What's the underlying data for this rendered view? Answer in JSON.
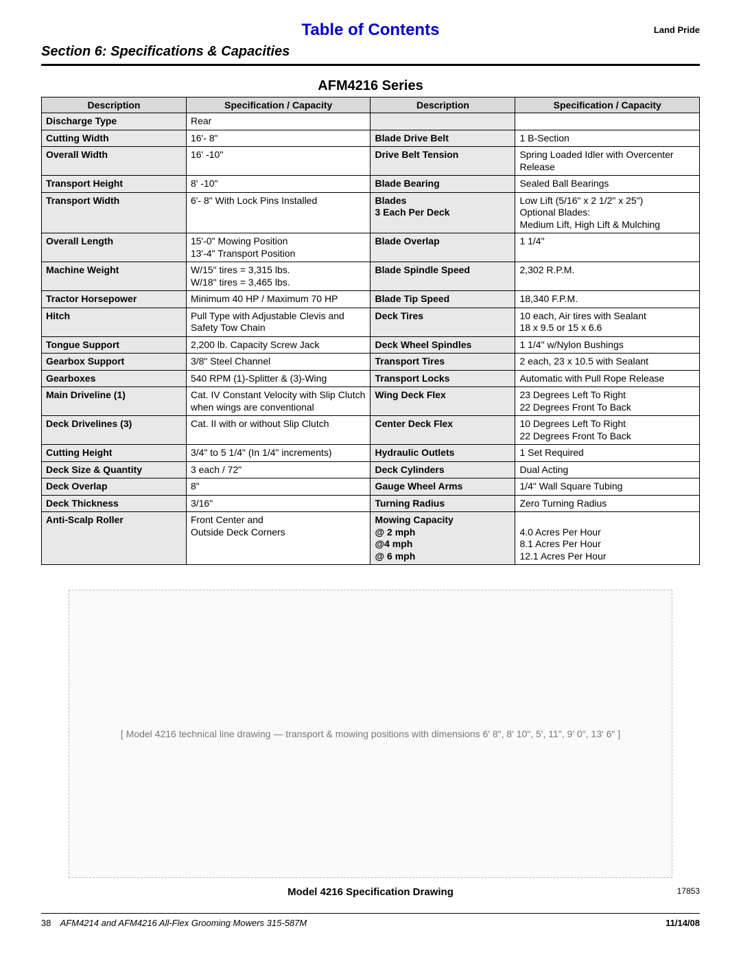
{
  "header": {
    "toc": "Table of Contents",
    "brand": "Land Pride",
    "section": "Section 6: Specifications & Capacities",
    "series": "AFM4216 Series"
  },
  "table": {
    "columns": [
      "Description",
      "Specification / Capacity",
      "Description",
      "Specification / Capacity"
    ],
    "header_bg": "#d9d9d9",
    "desc_bg": "#e8e8e8",
    "border_color": "#000000",
    "rows": [
      {
        "d1": "Discharge Type",
        "v1": "Rear",
        "d2": "",
        "v2": ""
      },
      {
        "d1": "Cutting Width",
        "v1": "16'- 8\"",
        "d2": "Blade Drive Belt",
        "v2": "1 B-Section"
      },
      {
        "d1": "Overall Width",
        "v1": "16' -10\"",
        "d2": "Drive Belt Tension",
        "v2": "Spring Loaded Idler with Overcenter Release"
      },
      {
        "d1": "Transport Height",
        "v1": "8' -10\"",
        "d2": "Blade Bearing",
        "v2": "Sealed Ball Bearings"
      },
      {
        "d1": "Transport Width",
        "v1": "6'- 8\" With Lock Pins Installed",
        "d2": "Blades\n3 Each Per Deck",
        "v2": "Low Lift (5/16\" x 2 1/2\" x 25\")\nOptional Blades:\nMedium Lift, High Lift & Mulching"
      },
      {
        "d1": "Overall Length",
        "v1": "15'-0\" Mowing Position\n13'-4\" Transport Position",
        "d2": "Blade Overlap",
        "v2": "1 1/4\""
      },
      {
        "d1": "Machine Weight",
        "v1": "W/15\" tires = 3,315 lbs.\nW/18\" tires = 3,465 lbs.",
        "d2": "Blade Spindle Speed",
        "v2": "2,302 R.P.M."
      },
      {
        "d1": "Tractor Horsepower",
        "v1": "Minimum 40 HP / Maximum 70 HP",
        "d2": "Blade Tip Speed",
        "v2": "18,340 F.P.M."
      },
      {
        "d1": "Hitch",
        "v1": "Pull Type with Adjustable Clevis and Safety Tow Chain",
        "d2": "Deck Tires",
        "v2": "10 each, Air tires with Sealant\n18 x 9.5 or 15 x 6.6"
      },
      {
        "d1": "Tongue Support",
        "v1": "2,200 lb. Capacity Screw Jack",
        "d2": "Deck Wheel Spindles",
        "v2": "1 1/4\" w/Nylon Bushings"
      },
      {
        "d1": "Gearbox Support",
        "v1": "3/8\" Steel Channel",
        "d2": "Transport Tires",
        "v2": "2 each, 23 x 10.5 with Sealant"
      },
      {
        "d1": "Gearboxes",
        "v1": "540 RPM   (1)-Splitter & (3)-Wing",
        "d2": "Transport Locks",
        "v2": "Automatic with Pull Rope Release"
      },
      {
        "d1": "Main Driveline (1)",
        "v1": "Cat. IV Constant Velocity with Slip Clutch when wings are conventional",
        "d2": "Wing Deck Flex",
        "v2": "23 Degrees Left To Right\n22 Degrees Front To Back"
      },
      {
        "d1": "Deck Drivelines (3)",
        "v1": "Cat. II with or without Slip Clutch",
        "d2": "Center Deck Flex",
        "v2": "10 Degrees Left To Right\n22 Degrees Front To Back"
      },
      {
        "d1": "Cutting Height",
        "v1": "3/4\" to 5 1/4\" (In 1/4\" increments)",
        "d2": "Hydraulic Outlets",
        "v2": "1 Set Required"
      },
      {
        "d1": "Deck Size & Quantity",
        "v1": "3 each / 72\"",
        "d2": "Deck Cylinders",
        "v2": "Dual Acting"
      },
      {
        "d1": "Deck Overlap",
        "v1": "8\"",
        "d2": "Gauge Wheel Arms",
        "v2": "1/4\" Wall Square Tubing"
      },
      {
        "d1": "Deck Thickness",
        "v1": "3/16\"",
        "d2": "Turning Radius",
        "v2": "Zero Turning Radius"
      },
      {
        "d1": "Anti-Scalp Roller",
        "v1": "Front Center and\nOutside Deck Corners",
        "d2": "Mowing Capacity\n@ 2 mph\n@4 mph\n@ 6 mph",
        "v2": "\n4.0 Acres Per Hour\n8.1 Acres Per Hour\n12.1 Acres Per Hour"
      }
    ]
  },
  "drawing": {
    "placeholder": "[ Model 4216 technical line drawing — transport & mowing positions with dimensions 6' 8\", 8' 10\", 5', 11\", 9' 0\", 13' 6\" ]",
    "caption": "Model 4216 Specification Drawing",
    "fig_no": "17853"
  },
  "footer": {
    "page": "38",
    "doc": "AFM4214 and AFM4216 All-Flex Grooming Mowers   315-587M",
    "date": "11/14/08"
  }
}
